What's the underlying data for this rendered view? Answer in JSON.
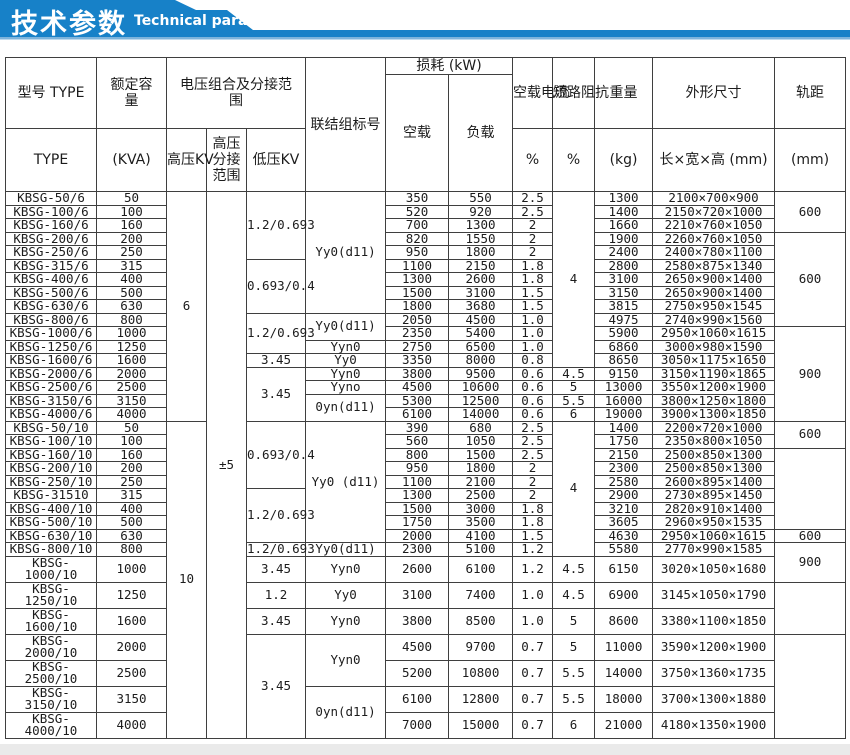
{
  "banner": {
    "title_cn": "技术参数",
    "title_en": "Technical parameter",
    "color": "#1781c8",
    "light_edge": "#7db4dc"
  },
  "table": {
    "header": {
      "model_cn": "型号 TYPE",
      "model_en": "TYPE",
      "capacity_cn": "额定容量",
      "capacity_unit": "(KVA)",
      "voltage_group": "电压组合及分接范围",
      "hv": "高压KV",
      "hv_tap": "高压分接范围",
      "lv": "低压KV",
      "connection": "联结组标号",
      "loss": "损耗 (kW)",
      "noload": "空载",
      "load": "负载",
      "noload_current": "空载电流",
      "impedance_label": "短路阻抗",
      "percent1": "%",
      "percent2": "%",
      "weight": "重量",
      "weight_unit": "(kg)",
      "dimensions": "外形尺寸",
      "dimensions_unit": "长×宽×高 (mm)",
      "gauge_label": "轨距",
      "gauge_unit": "(mm)"
    },
    "rows": [
      {
        "type": "KBSG-50/6",
        "kva": "50",
        "noload": "350",
        "load": "550",
        "current": "2.5",
        "weight": "1300",
        "dims": "2100×700×900"
      },
      {
        "type": "KBSG-100/6",
        "kva": "100",
        "noload": "520",
        "load": "920",
        "current": "2.5",
        "weight": "1400",
        "dims": "2150×720×1000"
      },
      {
        "type": "KBSG-160/6",
        "kva": "160",
        "noload": "700",
        "load": "1300",
        "current": "2",
        "weight": "1660",
        "dims": "2210×760×1050"
      },
      {
        "type": "KBSG-200/6",
        "kva": "200",
        "noload": "820",
        "load": "1550",
        "current": "2",
        "weight": "1900",
        "dims": "2260×760×1050"
      },
      {
        "type": "KBSG-250/6",
        "kva": "250",
        "noload": "950",
        "load": "1800",
        "current": "2",
        "weight": "2400",
        "dims": "2400×780×1100"
      },
      {
        "type": "KBSG-315/6",
        "kva": "315",
        "noload": "1100",
        "load": "2150",
        "current": "1.8",
        "weight": "2800",
        "dims": "2580×875×1340"
      },
      {
        "type": "KBSG-400/6",
        "kva": "400",
        "noload": "1300",
        "load": "2600",
        "current": "1.8",
        "weight": "3100",
        "dims": "2650×900×1400"
      },
      {
        "type": "KBSG-500/6",
        "kva": "500",
        "noload": "1500",
        "load": "3100",
        "current": "1.5",
        "weight": "3150",
        "dims": "2650×900×1400"
      },
      {
        "type": "KBSG-630/6",
        "kva": "630",
        "noload": "1800",
        "load": "3680",
        "current": "1.5",
        "weight": "3815",
        "dims": "2750×950×1545"
      },
      {
        "type": "KBSG-800/6",
        "kva": "800",
        "noload": "2050",
        "load": "4500",
        "current": "1.0",
        "weight": "4975",
        "dims": "2740×990×1560"
      },
      {
        "type": "KBSG-1000/6",
        "kva": "1000",
        "noload": "2350",
        "load": "5400",
        "current": "1.0",
        "weight": "5900",
        "dims": "2950×1060×1615"
      },
      {
        "type": "KBSG-1250/6",
        "kva": "1250",
        "noload": "2750",
        "load": "6500",
        "current": "1.0",
        "weight": "6860",
        "dims": "3000×980×1590"
      },
      {
        "type": "KBSG-1600/6",
        "kva": "1600",
        "noload": "3350",
        "load": "8000",
        "current": "0.8",
        "weight": "8650",
        "dims": "3050×1175×1650"
      },
      {
        "type": "KBSG-2000/6",
        "kva": "2000",
        "noload": "3800",
        "load": "9500",
        "current": "0.6",
        "weight": "9150",
        "dims": "3150×1190×1865"
      },
      {
        "type": "KBSG-2500/6",
        "kva": "2500",
        "noload": "4500",
        "load": "10600",
        "current": "0.6",
        "weight": "13000",
        "dims": "3550×1200×1900"
      },
      {
        "type": "KBSG-3150/6",
        "kva": "3150",
        "noload": "5300",
        "load": "12500",
        "current": "0.6",
        "weight": "16000",
        "dims": "3800×1250×1800"
      },
      {
        "type": "KBSG-4000/6",
        "kva": "4000",
        "noload": "6100",
        "load": "14000",
        "current": "0.6",
        "weight": "19000",
        "dims": "3900×1300×1850"
      },
      {
        "type": "KBSG-50/10",
        "kva": "50",
        "noload": "390",
        "load": "680",
        "current": "2.5",
        "weight": "1400",
        "dims": "2200×720×1000"
      },
      {
        "type": "KBSG-100/10",
        "kva": "100",
        "noload": "560",
        "load": "1050",
        "current": "2.5",
        "weight": "1750",
        "dims": "2350×800×1050"
      },
      {
        "type": "KBSG-160/10",
        "kva": "160",
        "noload": "800",
        "load": "1500",
        "current": "2.5",
        "weight": "2150",
        "dims": "2500×850×1300"
      },
      {
        "type": "KBSG-200/10",
        "kva": "200",
        "noload": "950",
        "load": "1800",
        "current": "2",
        "weight": "2300",
        "dims": "2500×850×1300"
      },
      {
        "type": "KBSG-250/10",
        "kva": "250",
        "noload": "1100",
        "load": "2100",
        "current": "2",
        "weight": "2580",
        "dims": "2600×895×1400"
      },
      {
        "type": "KBSG-31510",
        "kva": "315",
        "noload": "1300",
        "load": "2500",
        "current": "2",
        "weight": "2900",
        "dims": "2730×895×1450"
      },
      {
        "type": "KBSG-400/10",
        "kva": "400",
        "noload": "1500",
        "load": "3000",
        "current": "1.8",
        "weight": "3210",
        "dims": "2820×910×1400"
      },
      {
        "type": "KBSG-500/10",
        "kva": "500",
        "noload": "1750",
        "load": "3500",
        "current": "1.8",
        "weight": "3605",
        "dims": "2960×950×1535"
      },
      {
        "type": "KBSG-630/10",
        "kva": "630",
        "noload": "2000",
        "load": "4100",
        "current": "1.5",
        "weight": "4630",
        "dims": "2950×1060×1615"
      },
      {
        "type": "KBSG-800/10",
        "kva": "800",
        "noload": "2300",
        "load": "5100",
        "current": "1.2",
        "weight": "5580",
        "dims": "2770×990×1585"
      },
      {
        "type": "KBSG-1000/10",
        "kva": "1000",
        "noload": "2600",
        "load": "6100",
        "current": "1.2",
        "weight": "6150",
        "dims": "3020×1050×1680"
      },
      {
        "type": "KBSG-1250/10",
        "kva": "1250",
        "noload": "3100",
        "load": "7400",
        "current": "1.0",
        "weight": "6900",
        "dims": "3145×1050×1790"
      },
      {
        "type": "KBSG-1600/10",
        "kva": "1600",
        "noload": "3800",
        "load": "8500",
        "current": "1.0",
        "weight": "8600",
        "dims": "3380×1100×1850"
      },
      {
        "type": "KBSG-2000/10",
        "kva": "2000",
        "noload": "4500",
        "load": "9700",
        "current": "0.7",
        "weight": "11000",
        "dims": "3590×1200×1900"
      },
      {
        "type": "KBSG-2500/10",
        "kva": "2500",
        "noload": "5200",
        "load": "10800",
        "current": "0.7",
        "weight": "14000",
        "dims": "3750×1360×1735"
      },
      {
        "type": "KBSG-3150/10",
        "kva": "3150",
        "noload": "6100",
        "load": "12800",
        "current": "0.7",
        "weight": "18000",
        "dims": "3700×1300×1880"
      },
      {
        "type": "KBSG-4000/10",
        "kva": "4000",
        "noload": "7000",
        "load": "15000",
        "current": "0.7",
        "weight": "21000",
        "dims": "4180×1350×1900"
      }
    ],
    "merged": {
      "hv": [
        {
          "start": 1,
          "span": 17,
          "text": "6"
        },
        {
          "start": 18,
          "span": 17,
          "text": "10"
        }
      ],
      "tap": [
        {
          "start": 1,
          "span": 34,
          "text": "±5"
        }
      ],
      "lv": [
        {
          "start": 1,
          "span": 5,
          "text": "1.2/0.693"
        },
        {
          "start": 6,
          "span": 4,
          "text": "0.693/0.4"
        },
        {
          "start": 10,
          "span": 3,
          "text": "1.2/0.693"
        },
        {
          "start": 13,
          "span": 1,
          "text": "3.45"
        },
        {
          "start": 14,
          "span": 4,
          "text": "3.45"
        },
        {
          "start": 18,
          "span": 5,
          "text": "0.693/0.4"
        },
        {
          "start": 23,
          "span": 4,
          "text": "1.2/0.693"
        },
        {
          "start": 27,
          "span": 1,
          "text": "1.2/0.693"
        },
        {
          "start": 28,
          "span": 1,
          "text": "3.45"
        },
        {
          "start": 29,
          "span": 1,
          "text": "1.2"
        },
        {
          "start": 30,
          "span": 1,
          "text": "3.45"
        },
        {
          "start": 31,
          "span": 4,
          "text": "3.45"
        }
      ],
      "conn": [
        {
          "start": 1,
          "span": 9,
          "text": "Yy0(d11)"
        },
        {
          "start": 10,
          "span": 2,
          "text": "Yy0(d11)"
        },
        {
          "start": 12,
          "span": 1,
          "text": "Yyn0"
        },
        {
          "start": 13,
          "span": 1,
          "text": "Yy0"
        },
        {
          "start": 14,
          "span": 1,
          "text": "Yyn0"
        },
        {
          "start": 15,
          "span": 1,
          "text": "Yyno"
        },
        {
          "start": 16,
          "span": 2,
          "text": "0yn(d11)"
        },
        {
          "start": 18,
          "span": 9,
          "text": "Yy0 (d11)"
        },
        {
          "start": 27,
          "span": 1,
          "text": "Yy0(d11)"
        },
        {
          "start": 28,
          "span": 1,
          "text": "Yyn0"
        },
        {
          "start": 29,
          "span": 1,
          "text": "Yy0"
        },
        {
          "start": 30,
          "span": 1,
          "text": "Yyn0"
        },
        {
          "start": 31,
          "span": 2,
          "text": "Yyn0"
        },
        {
          "start": 33,
          "span": 2,
          "text": "0yn(d11)"
        }
      ],
      "impedance": [
        {
          "start": 1,
          "span": 13,
          "text": "4"
        },
        {
          "start": 14,
          "span": 1,
          "text": "4.5"
        },
        {
          "start": 15,
          "span": 1,
          "text": "5"
        },
        {
          "start": 16,
          "span": 1,
          "text": "5.5"
        },
        {
          "start": 17,
          "span": 1,
          "text": "6"
        },
        {
          "start": 18,
          "span": 10,
          "text": "4"
        },
        {
          "start": 28,
          "span": 1,
          "text": "4.5"
        },
        {
          "start": 29,
          "span": 1,
          "text": "4.5"
        },
        {
          "start": 30,
          "span": 1,
          "text": "5"
        },
        {
          "start": 31,
          "span": 1,
          "text": "5"
        },
        {
          "start": 32,
          "span": 1,
          "text": "5.5"
        },
        {
          "start": 33,
          "span": 1,
          "text": "5.5"
        },
        {
          "start": 34,
          "span": 1,
          "text": "6"
        }
      ],
      "gauge": [
        {
          "start": 1,
          "span": 3,
          "text": "600"
        },
        {
          "start": 4,
          "span": 7,
          "text": "600"
        },
        {
          "start": 11,
          "span": 7,
          "text": "900"
        },
        {
          "start": 18,
          "span": 2,
          "text": "600"
        },
        {
          "start": 20,
          "span": 6,
          "text": ""
        },
        {
          "start": 26,
          "span": 1,
          "text": "600"
        },
        {
          "start": 27,
          "span": 2,
          "text": "900"
        },
        {
          "start": 29,
          "span": 2,
          "text": ""
        },
        {
          "start": 31,
          "span": 4,
          "text": ""
        }
      ]
    }
  }
}
